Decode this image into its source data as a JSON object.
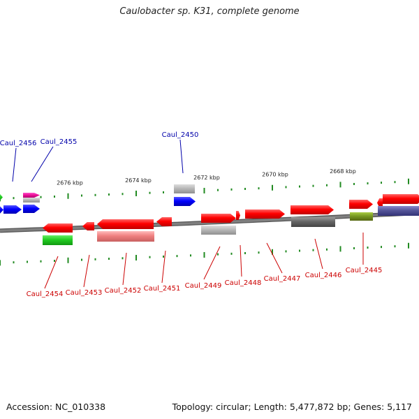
{
  "title": "Caulobacter sp. K31, complete genome",
  "accession_label": "Accession: NC_010338",
  "summary_label": "Topology: circular; Length: 5,477,872 bp; Genes: 5,117",
  "colors": {
    "backbone": "#808080",
    "tick": "#228b22",
    "top_label": "#0000aa",
    "bottom_label": "#cc0000"
  },
  "scale_labels": [
    "2676 kbp",
    "2674 kbp",
    "2672 kbp",
    "2670 kbp",
    "2668 kbp"
  ],
  "top_gene_labels": [
    "Caul_2456",
    "Caul_2455",
    "Caul_2450"
  ],
  "bottom_gene_labels": [
    "Caul_2454",
    "Caul_2453",
    "Caul_2452",
    "Caul_2451",
    "Caul_2449",
    "Caul_2448",
    "Caul_2447",
    "Caul_2446",
    "Caul_2445"
  ]
}
